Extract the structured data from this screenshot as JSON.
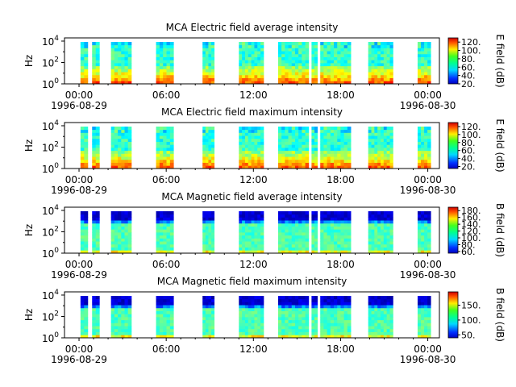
{
  "chart_data": [
    {
      "type": "heatmap",
      "title": "MCA  Electric field average intensity",
      "ylabel": "Hz",
      "y_scale": "log",
      "y_ticks": [
        {
          "base": "10",
          "exp": "0"
        },
        {
          "base": "10",
          "exp": "2"
        },
        {
          "base": "10",
          "exp": "4"
        }
      ],
      "x_ticks": [
        "00:00",
        "06:00",
        "12:00",
        "18:00",
        "00:00"
      ],
      "x_start_date": "1996-08-29",
      "x_end_date": "1996-08-30",
      "colorbar": {
        "label": "E field (dB)",
        "ticks": [
          "20.",
          "40.",
          "60.",
          "80.",
          "100.",
          "120."
        ],
        "range": [
          20,
          130
        ]
      },
      "data_blocks_hours": [
        [
          0.1,
          0.6
        ],
        [
          0.9,
          1.4
        ],
        [
          2.2,
          3.6
        ],
        [
          5.3,
          6.5
        ],
        [
          8.5,
          9.3
        ],
        [
          11.0,
          12.7
        ],
        [
          13.7,
          15.8
        ],
        [
          16.0,
          16.4
        ],
        [
          16.6,
          18.7
        ],
        [
          19.9,
          21.6
        ],
        [
          23.3,
          24.2
        ]
      ]
    },
    {
      "type": "heatmap",
      "title": "MCA  Electric field maximum intensity",
      "ylabel": "Hz",
      "y_scale": "log",
      "y_ticks": [
        {
          "base": "10",
          "exp": "0"
        },
        {
          "base": "10",
          "exp": "2"
        },
        {
          "base": "10",
          "exp": "4"
        }
      ],
      "x_ticks": [
        "00:00",
        "06:00",
        "12:00",
        "18:00",
        "00:00"
      ],
      "x_start_date": "1996-08-29",
      "x_end_date": "1996-08-30",
      "colorbar": {
        "label": "E field (dB)",
        "ticks": [
          "20.",
          "40.",
          "60.",
          "80.",
          "100.",
          "120."
        ],
        "range": [
          15,
          130
        ]
      },
      "data_blocks_hours": [
        [
          0.1,
          0.6
        ],
        [
          0.9,
          1.4
        ],
        [
          2.2,
          3.6
        ],
        [
          5.3,
          6.5
        ],
        [
          8.5,
          9.3
        ],
        [
          11.0,
          12.7
        ],
        [
          13.7,
          15.8
        ],
        [
          16.0,
          16.4
        ],
        [
          16.6,
          18.7
        ],
        [
          19.9,
          21.6
        ],
        [
          23.3,
          24.2
        ]
      ]
    },
    {
      "type": "heatmap",
      "title": "MCA  Magnetic field average intensity",
      "ylabel": "Hz",
      "y_scale": "log",
      "y_ticks": [
        {
          "base": "10",
          "exp": "0"
        },
        {
          "base": "10",
          "exp": "2"
        },
        {
          "base": "10",
          "exp": "4"
        }
      ],
      "x_ticks": [
        "00:00",
        "06:00",
        "12:00",
        "18:00",
        "00:00"
      ],
      "x_start_date": "1996-08-29",
      "x_end_date": "1996-08-30",
      "colorbar": {
        "label": "B field (dB)",
        "ticks": [
          "60.",
          "80.",
          "100.",
          "120.",
          "140.",
          "160.",
          "180."
        ],
        "range": [
          55,
          190
        ]
      },
      "data_blocks_hours": [
        [
          0.1,
          0.6
        ],
        [
          0.9,
          1.4
        ],
        [
          2.2,
          3.6
        ],
        [
          5.3,
          6.5
        ],
        [
          8.5,
          9.3
        ],
        [
          11.0,
          12.7
        ],
        [
          13.7,
          15.8
        ],
        [
          16.0,
          16.4
        ],
        [
          16.6,
          18.7
        ],
        [
          19.9,
          21.6
        ],
        [
          23.3,
          24.2
        ]
      ]
    },
    {
      "type": "heatmap",
      "title": "MCA  Magnetic field maximum intensity",
      "ylabel": "Hz",
      "y_scale": "log",
      "y_ticks": [
        {
          "base": "10",
          "exp": "0"
        },
        {
          "base": "10",
          "exp": "2"
        },
        {
          "base": "10",
          "exp": "4"
        }
      ],
      "x_ticks": [
        "00:00",
        "06:00",
        "12:00",
        "18:00",
        "00:00"
      ],
      "x_start_date": "1996-08-29",
      "x_end_date": "1996-08-30",
      "colorbar": {
        "label": "B field (dB)",
        "ticks": [
          "50.",
          "100.",
          "150."
        ],
        "range": [
          40,
          195
        ]
      },
      "data_blocks_hours": [
        [
          0.1,
          0.6
        ],
        [
          0.9,
          1.4
        ],
        [
          2.2,
          3.6
        ],
        [
          5.3,
          6.5
        ],
        [
          8.5,
          9.3
        ],
        [
          11.0,
          12.7
        ],
        [
          13.7,
          15.8
        ],
        [
          16.0,
          16.4
        ],
        [
          16.6,
          18.7
        ],
        [
          19.9,
          21.6
        ],
        [
          23.3,
          24.2
        ]
      ]
    }
  ]
}
